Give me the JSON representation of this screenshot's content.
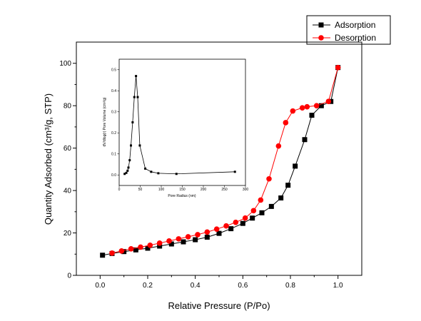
{
  "chart_data": [
    {
      "type": "line",
      "title": "",
      "xlabel": "Relative Pressure (P/Po)",
      "ylabel": "Quantity Adsorbed (cm³/g, STP)",
      "xlim": [
        -0.1,
        1.1
      ],
      "ylim": [
        0,
        110
      ],
      "xticks": [
        "0.0",
        "0.2",
        "0.4",
        "0.6",
        "0.8",
        "1.0"
      ],
      "yticks": [
        "0",
        "20",
        "40",
        "60",
        "80",
        "100"
      ],
      "legend_position": "top-right",
      "grid": false,
      "series": [
        {
          "name": "Adsorption",
          "color": "#000000",
          "marker": "square",
          "x": [
            0.01,
            0.05,
            0.1,
            0.15,
            0.2,
            0.25,
            0.3,
            0.35,
            0.4,
            0.45,
            0.5,
            0.55,
            0.6,
            0.64,
            0.68,
            0.72,
            0.76,
            0.79,
            0.82,
            0.86,
            0.89,
            0.93,
            0.97,
            1.0
          ],
          "y": [
            9.5,
            10.3,
            11.2,
            12.0,
            12.8,
            13.8,
            14.8,
            15.8,
            16.8,
            18.0,
            19.8,
            22.0,
            24.5,
            27.0,
            29.5,
            32.5,
            36.5,
            42.5,
            51.5,
            64.0,
            75.5,
            80.0,
            82.0,
            98.0
          ]
        },
        {
          "name": "Desorption",
          "color": "#ff0000",
          "marker": "circle",
          "x": [
            0.05,
            0.09,
            0.13,
            0.17,
            0.21,
            0.25,
            0.29,
            0.33,
            0.37,
            0.41,
            0.45,
            0.49,
            0.53,
            0.57,
            0.61,
            0.645,
            0.675,
            0.71,
            0.75,
            0.78,
            0.81,
            0.85,
            0.87,
            0.91,
            0.96,
            1.0
          ],
          "y": [
            10.5,
            11.5,
            12.5,
            13.3,
            14.2,
            15.2,
            16.2,
            17.2,
            18.2,
            19.2,
            20.4,
            21.8,
            23.3,
            25.0,
            27.0,
            30.5,
            35.5,
            45.5,
            61.0,
            72.0,
            77.5,
            79.0,
            79.5,
            80.0,
            82.0,
            98.0
          ]
        }
      ]
    },
    {
      "type": "line",
      "title": "",
      "xlabel": "Pore Radius (nm)",
      "ylabel": "dV/dlog(r) Pore Volume (cm³/g)",
      "xlim": [
        0,
        300
      ],
      "ylim": [
        -0.05,
        0.55
      ],
      "xticks": [
        "0",
        "50",
        "100",
        "150",
        "200",
        "250",
        "300"
      ],
      "yticks": [
        "0.0",
        "0.1",
        "0.2",
        "0.3",
        "0.4",
        "0.5"
      ],
      "grid": false,
      "series": [
        {
          "name": "",
          "color": "#000000",
          "marker": "square",
          "x": [
            13,
            17,
            20,
            22,
            25,
            28,
            32,
            36,
            40,
            44,
            49,
            62,
            76,
            93,
            136,
            275
          ],
          "y": [
            0.005,
            0.01,
            0.02,
            0.035,
            0.07,
            0.14,
            0.25,
            0.37,
            0.47,
            0.37,
            0.14,
            0.03,
            0.015,
            0.008,
            0.005,
            0.015
          ]
        }
      ]
    }
  ]
}
